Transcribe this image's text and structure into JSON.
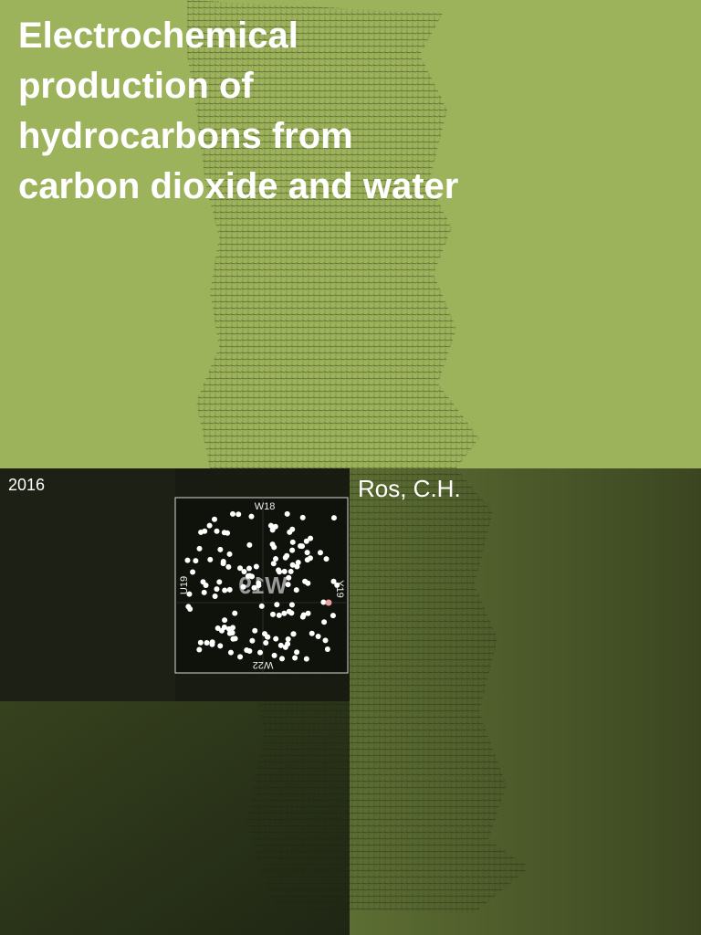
{
  "cover": {
    "title_lines": [
      "Electrochemical",
      "production of",
      "hydrocarbons from",
      "carbon dioxide and water"
    ],
    "year": "2016",
    "author": "Ros, C.H."
  },
  "map": {
    "top": "W18",
    "left": "U19",
    "right": "Y19",
    "bottom": "W22",
    "center": "W19"
  }
}
